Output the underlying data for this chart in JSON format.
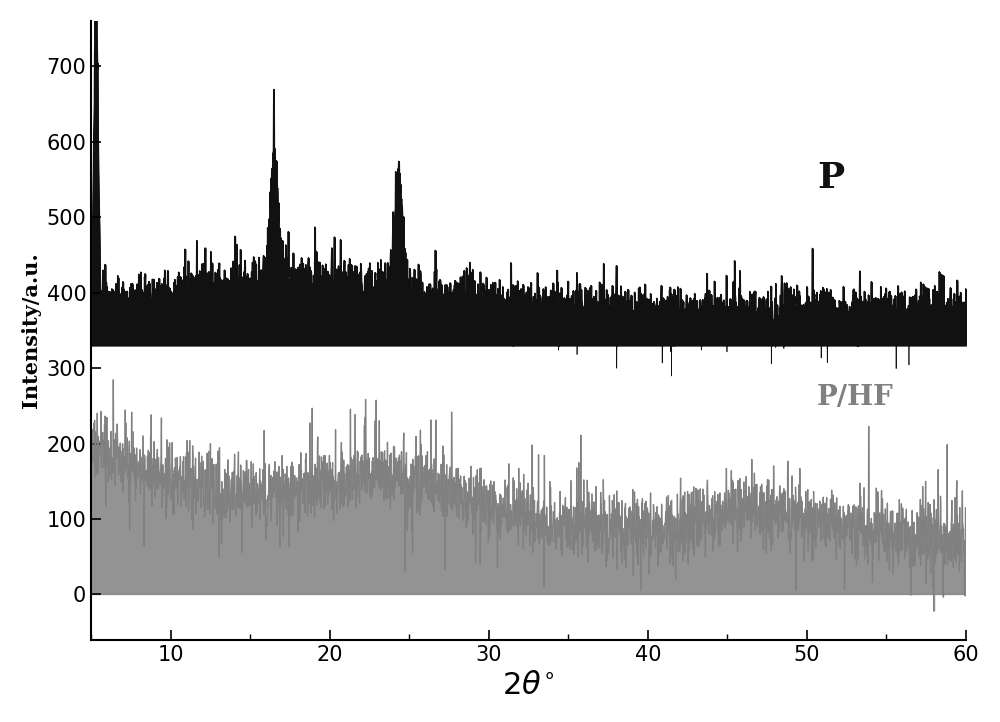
{
  "title": "",
  "xlabel": "2\\theta^{\\circ}",
  "ylabel": "Intensity/a.u.",
  "xlim": [
    5,
    60
  ],
  "ylim": [
    -60,
    760
  ],
  "xticks": [
    10,
    20,
    30,
    40,
    50,
    60
  ],
  "yticks": [
    0,
    100,
    200,
    300,
    400,
    500,
    600,
    700
  ],
  "label_P": "P",
  "label_PHF": "P/HF",
  "color_P": "#111111",
  "color_PHF": "#808080",
  "background_color": "#ffffff",
  "figsize": [
    10.0,
    7.22
  ],
  "dpi": 100
}
